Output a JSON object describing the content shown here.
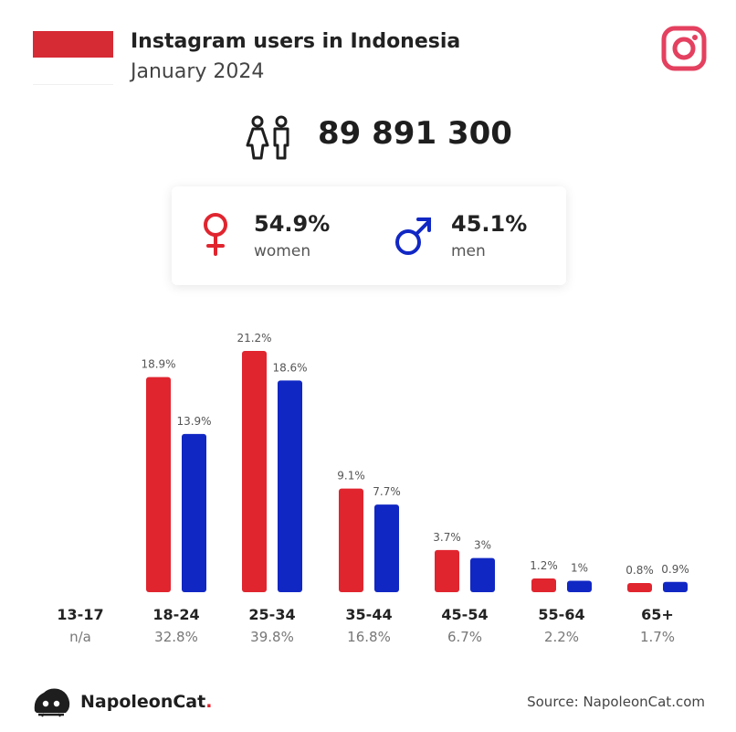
{
  "header": {
    "title": "Instagram users in Indonesia",
    "subtitle": "January 2024"
  },
  "icons": {
    "flag": "indonesia-flag-icon",
    "platform": "instagram-icon",
    "people": "people-icon",
    "female": "female-symbol-icon",
    "male": "male-symbol-icon",
    "logo": "napoleoncat-logo-icon"
  },
  "colors": {
    "women": "#e0252f",
    "men": "#1127c4",
    "instagram": "#e4405f",
    "flag_red": "#d62a35"
  },
  "summary": {
    "total_users": "89 891 300",
    "women_pct": "54.9%",
    "women_label": "women",
    "men_pct": "45.1%",
    "men_label": "men"
  },
  "chart_data": {
    "type": "bar",
    "categories": [
      "13-17",
      "18-24",
      "25-34",
      "35-44",
      "45-54",
      "55-64",
      "65+"
    ],
    "category_totals": [
      "n/a",
      "32.8%",
      "39.8%",
      "16.8%",
      "6.7%",
      "2.2%",
      "1.7%"
    ],
    "series": [
      {
        "values": [
          null,
          18.9,
          21.2,
          9.1,
          3.7,
          1.2,
          0.8
        ],
        "labels": [
          "",
          "18.9%",
          "21.2%",
          "9.1%",
          "3.7%",
          "1.2%",
          "0.8%"
        ],
        "color": "#e0252f"
      },
      {
        "values": [
          null,
          13.9,
          18.6,
          7.7,
          3.0,
          1.0,
          0.9
        ],
        "labels": [
          "",
          "13.9%",
          "18.6%",
          "7.7%",
          "3%",
          "1%",
          "0.9%"
        ],
        "color": "#1127c4"
      }
    ],
    "ylim": [
      0,
      21.2
    ],
    "grid": false
  },
  "footer": {
    "brand": "NapoleonCat",
    "brand_dot": ".",
    "source": "Source: NapoleonCat.com"
  }
}
